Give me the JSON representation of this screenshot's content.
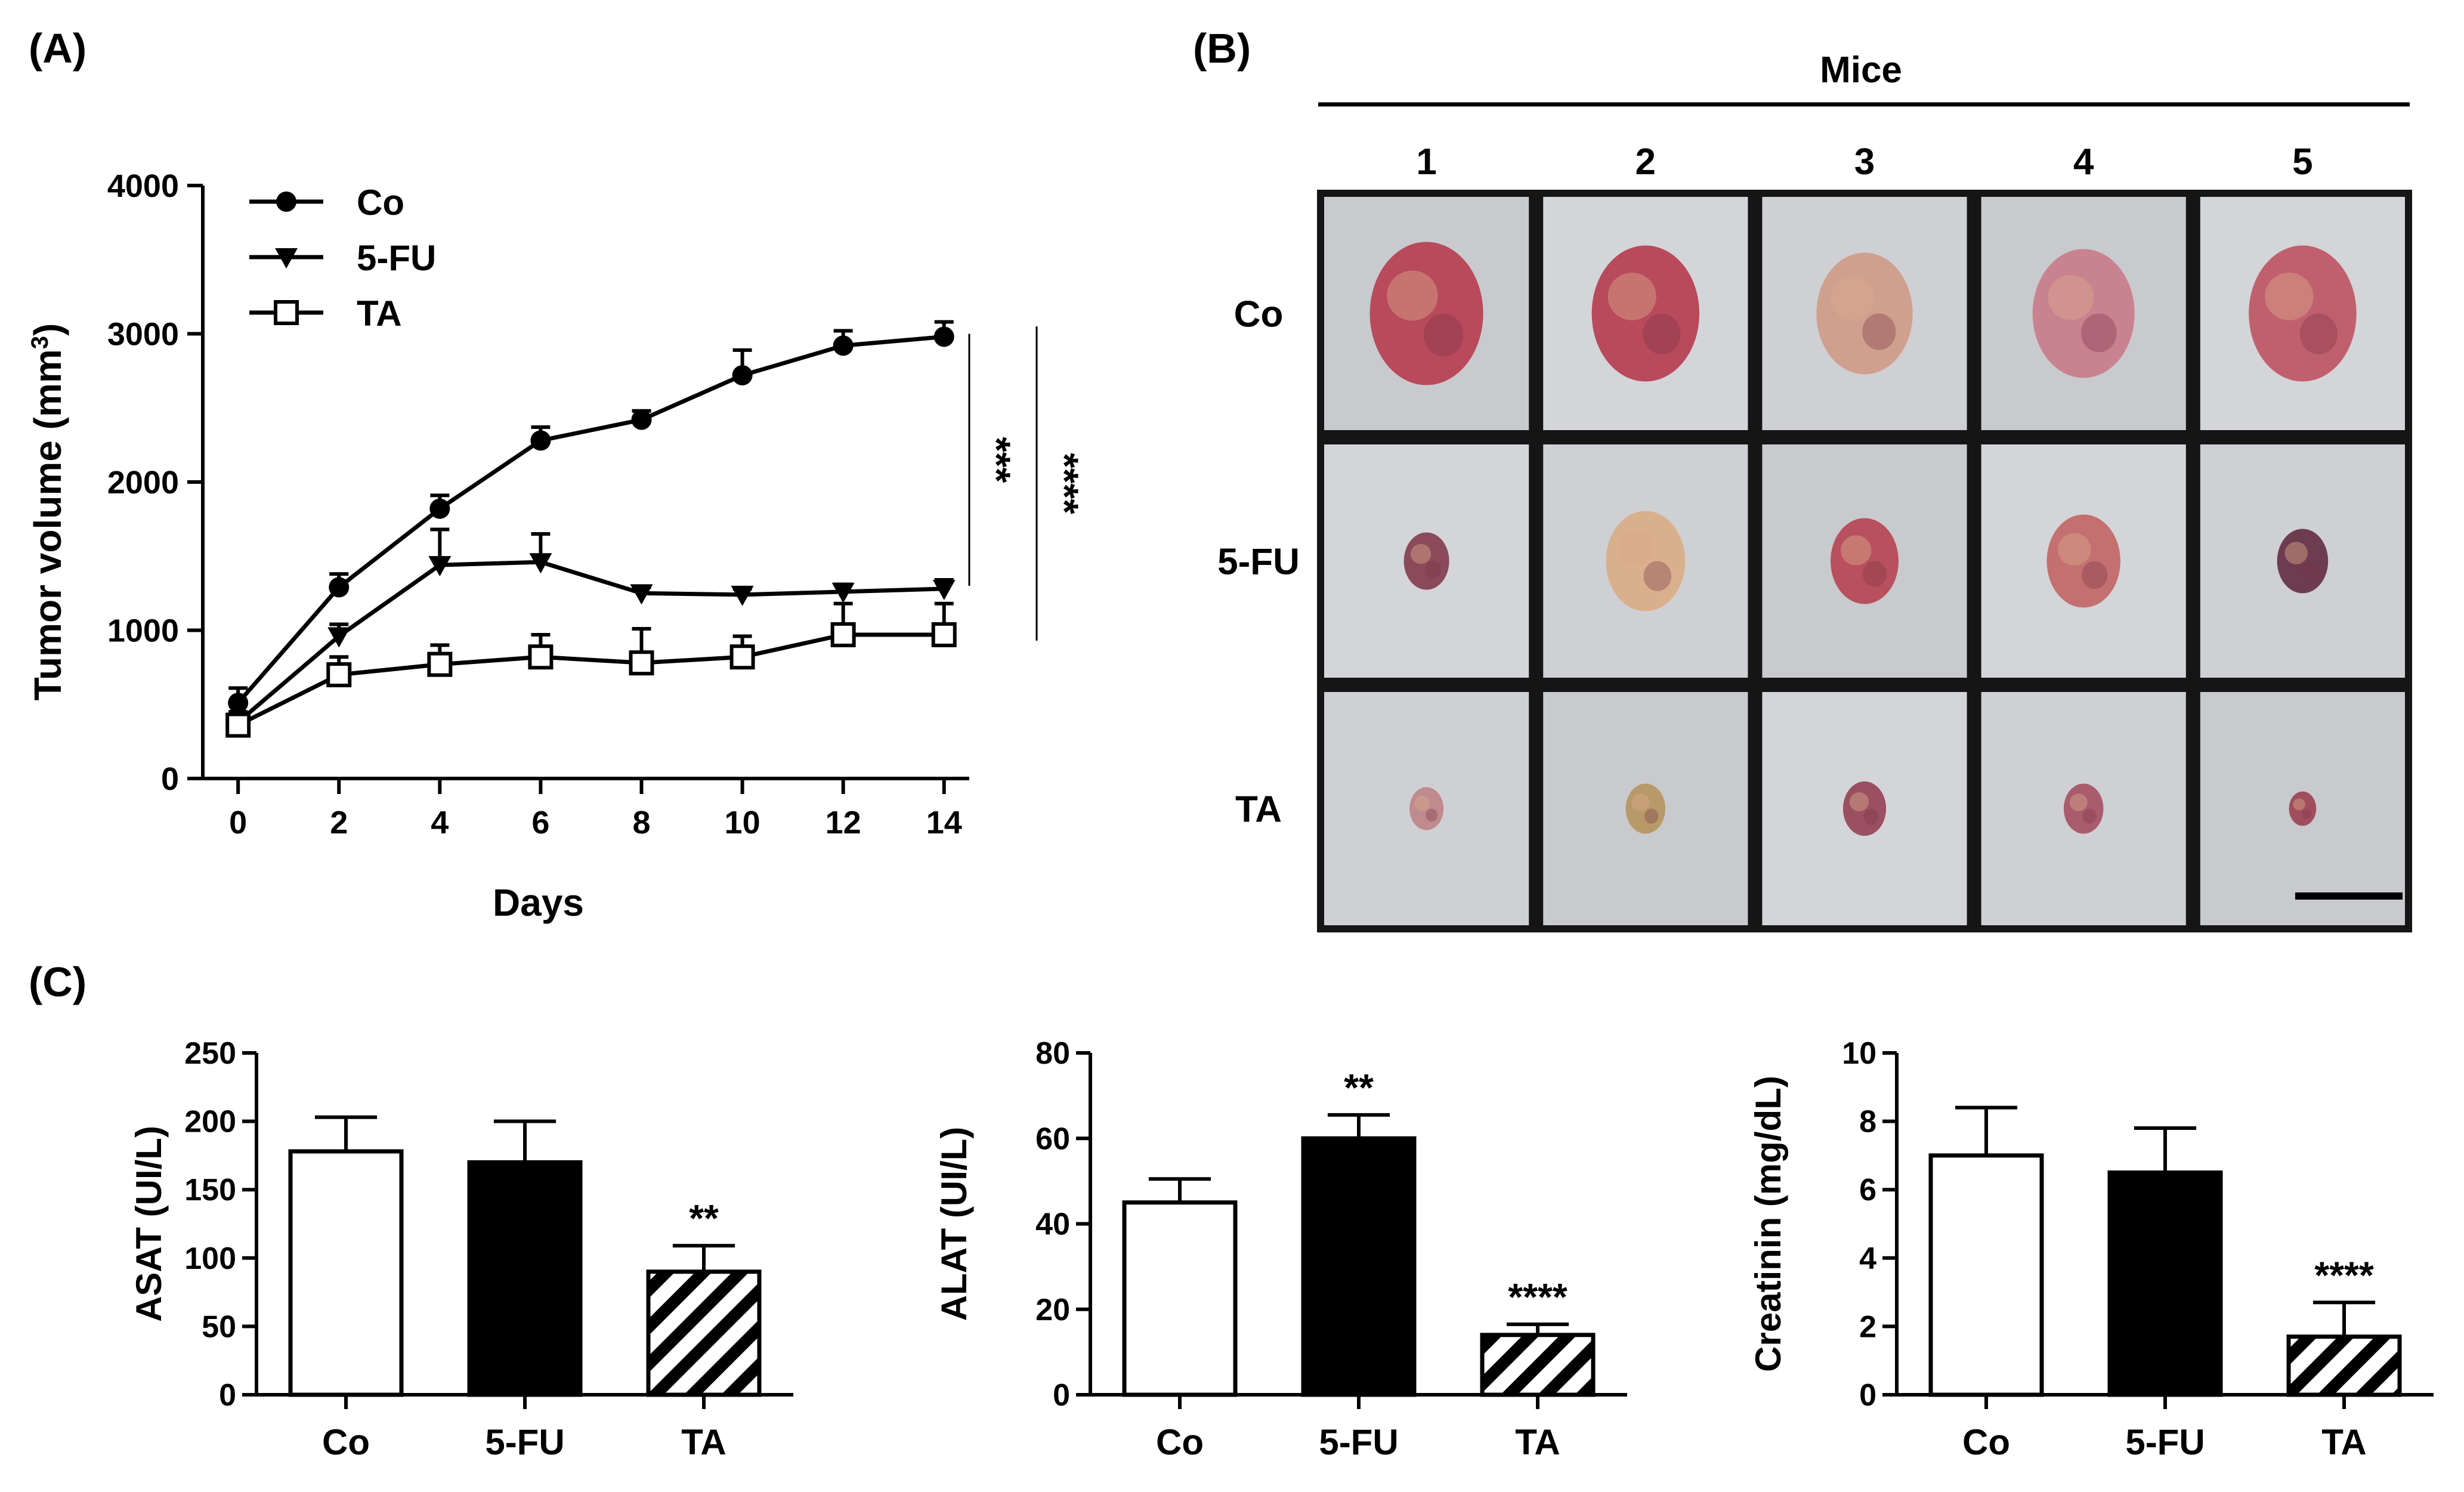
{
  "panel_labels": {
    "a": "(A)",
    "b": "(B)",
    "c": "(C)"
  },
  "colors": {
    "ink": "#000000",
    "paper": "#ffffff",
    "photo_bg": "#cfd0d4",
    "tumor": "#b84a5c",
    "tumor_light": "#d9a98a",
    "tumor_dark": "#7a3348"
  },
  "chart_data": [
    {
      "id": "A",
      "type": "line",
      "title": "",
      "xlabel": "Days",
      "ylabel": "Tumor volume (mm",
      "ylabel_sup": "3",
      "ylabel_end": ")",
      "x": [
        0,
        2,
        4,
        6,
        8,
        10,
        12,
        14
      ],
      "xticks": [
        "0",
        "2",
        "4",
        "6",
        "8",
        "10",
        "12",
        "14"
      ],
      "yticks": [
        "0",
        "1000",
        "2000",
        "3000",
        "4000"
      ],
      "xlim": [
        -0.7,
        14.5
      ],
      "ylim": [
        0,
        4000
      ],
      "legend_position": "top-left",
      "series": [
        {
          "name": "Co",
          "marker": "circle",
          "values": [
            510,
            1290,
            1820,
            2280,
            2420,
            2720,
            2920,
            2980
          ],
          "errors": [
            100,
            90,
            90,
            90,
            60,
            170,
            100,
            100
          ]
        },
        {
          "name": "5-FU",
          "marker": "triangle-down",
          "values": [
            380,
            960,
            1440,
            1460,
            1250,
            1240,
            1260,
            1280
          ],
          "errors": [
            70,
            80,
            240,
            190,
            40,
            40,
            50,
            60
          ]
        },
        {
          "name": "TA",
          "marker": "open-square",
          "values": [
            360,
            700,
            770,
            820,
            780,
            820,
            970,
            970
          ],
          "errors": [
            60,
            120,
            130,
            150,
            230,
            140,
            210,
            210
          ]
        }
      ],
      "significance": [
        {
          "label": "***",
          "from": 3000,
          "to": 1300,
          "position": "inner"
        },
        {
          "label": "****",
          "from": 3050,
          "to": 930,
          "position": "outer"
        }
      ]
    },
    {
      "id": "C1",
      "type": "bar",
      "categories": [
        "Co",
        "5-FU",
        "TA"
      ],
      "values": [
        178,
        170,
        90
      ],
      "errors": [
        25,
        30,
        19
      ],
      "fills": [
        "open",
        "solid",
        "hatched"
      ],
      "ylabel": "ASAT (UI/L)",
      "ylim": [
        0,
        250
      ],
      "yticks": [
        "0",
        "50",
        "100",
        "150",
        "200",
        "250"
      ],
      "significance": [
        null,
        null,
        "**"
      ]
    },
    {
      "id": "C2",
      "type": "bar",
      "categories": [
        "Co",
        "5-FU",
        "TA"
      ],
      "values": [
        45,
        60,
        14
      ],
      "errors": [
        5.5,
        5.5,
        2.5
      ],
      "fills": [
        "open",
        "solid",
        "hatched"
      ],
      "ylabel": "ALAT (UI/L)",
      "ylim": [
        0,
        80
      ],
      "yticks": [
        "0",
        "20",
        "40",
        "60",
        "80"
      ],
      "significance": [
        null,
        "**",
        "****"
      ]
    },
    {
      "id": "C3",
      "type": "bar",
      "categories": [
        "Co",
        "5-FU",
        "TA"
      ],
      "values": [
        7.0,
        6.5,
        1.7
      ],
      "errors": [
        1.4,
        1.3,
        1.0
      ],
      "fills": [
        "open",
        "solid",
        "hatched"
      ],
      "ylabel": "Creatinin (mg/dL)",
      "ylim": [
        0,
        10
      ],
      "yticks": [
        "0",
        "2",
        "4",
        "6",
        "8",
        "10"
      ],
      "significance": [
        null,
        null,
        "****"
      ]
    }
  ],
  "photo_panel": {
    "header": "Mice",
    "columns": [
      "1",
      "2",
      "3",
      "4",
      "5"
    ],
    "rows": [
      {
        "label": "Co",
        "tumor_sizes": [
          1.0,
          0.95,
          0.85,
          0.9,
          0.95
        ],
        "tint": [
          "#b84a5c",
          "#b84a5c",
          "#d0a08e",
          "#c98290",
          "#c0606e"
        ]
      },
      {
        "label": "5-FU",
        "tumor_sizes": [
          0.4,
          0.7,
          0.6,
          0.65,
          0.45
        ],
        "tint": [
          "#8a4a5a",
          "#d9b08c",
          "#b8505e",
          "#c47070",
          "#6e3c50"
        ]
      },
      {
        "label": "TA",
        "tumor_sizes": [
          0.3,
          0.35,
          0.38,
          0.35,
          0.24
        ],
        "tint": [
          "#c08a8e",
          "#b89a6a",
          "#9a5060",
          "#a85c6c",
          "#a04e5e"
        ]
      }
    ]
  }
}
